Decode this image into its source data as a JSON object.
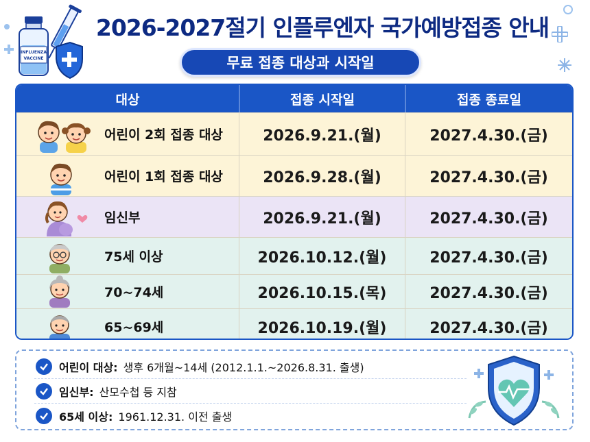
{
  "header": {
    "title": "2026-2027절기 인플루엔자 국가예방접종 안내",
    "subtitle": "무료 접종 대상과 시작일",
    "vaccine_label_line1": "INFLUENZA",
    "vaccine_label_line2": "VACCINE"
  },
  "table": {
    "columns": [
      "대상",
      "접종 시작일",
      "접종 종료일"
    ],
    "rows": [
      {
        "label": "어린이 2회 접종 대상",
        "start": "2026.9.21.(월)",
        "end": "2027.4.30.(금)",
        "icon": "two-children-icon"
      },
      {
        "label": "어린이 1회 접종 대상",
        "start": "2026.9.28.(월)",
        "end": "2027.4.30.(금)",
        "icon": "child-icon"
      },
      {
        "label": "임신부",
        "start": "2026.9.21.(월)",
        "end": "2027.4.30.(금)",
        "icon": "pregnant-woman-icon"
      },
      {
        "label": "75세 이상",
        "start": "2026.10.12.(월)",
        "end": "2027.4.30.(금)",
        "icon": "elderly-man-icon"
      },
      {
        "label": "70~74세",
        "start": "2026.10.15.(목)",
        "end": "2027.4.30.(금)",
        "icon": "elderly-woman-icon"
      },
      {
        "label": "65~69세",
        "start": "2026.10.19.(월)",
        "end": "2027.4.30.(금)",
        "icon": "senior-man-icon"
      }
    ]
  },
  "notes": [
    {
      "key": "어린이 대상:",
      "text": "생후 6개월~14세 (2012.1.1.~2026.8.31. 출생)"
    },
    {
      "key": "임신부:",
      "text": "산모수첩 등 지참"
    },
    {
      "key": "65세 이상:",
      "text": "1961.12.31. 이전 출생"
    }
  ],
  "colors": {
    "title": "#0d2a82",
    "accent": "#1a56c6",
    "row_yellow": "#fdf4d7",
    "row_purple": "#ebe4f6",
    "row_mint": "#e2f2ee"
  }
}
